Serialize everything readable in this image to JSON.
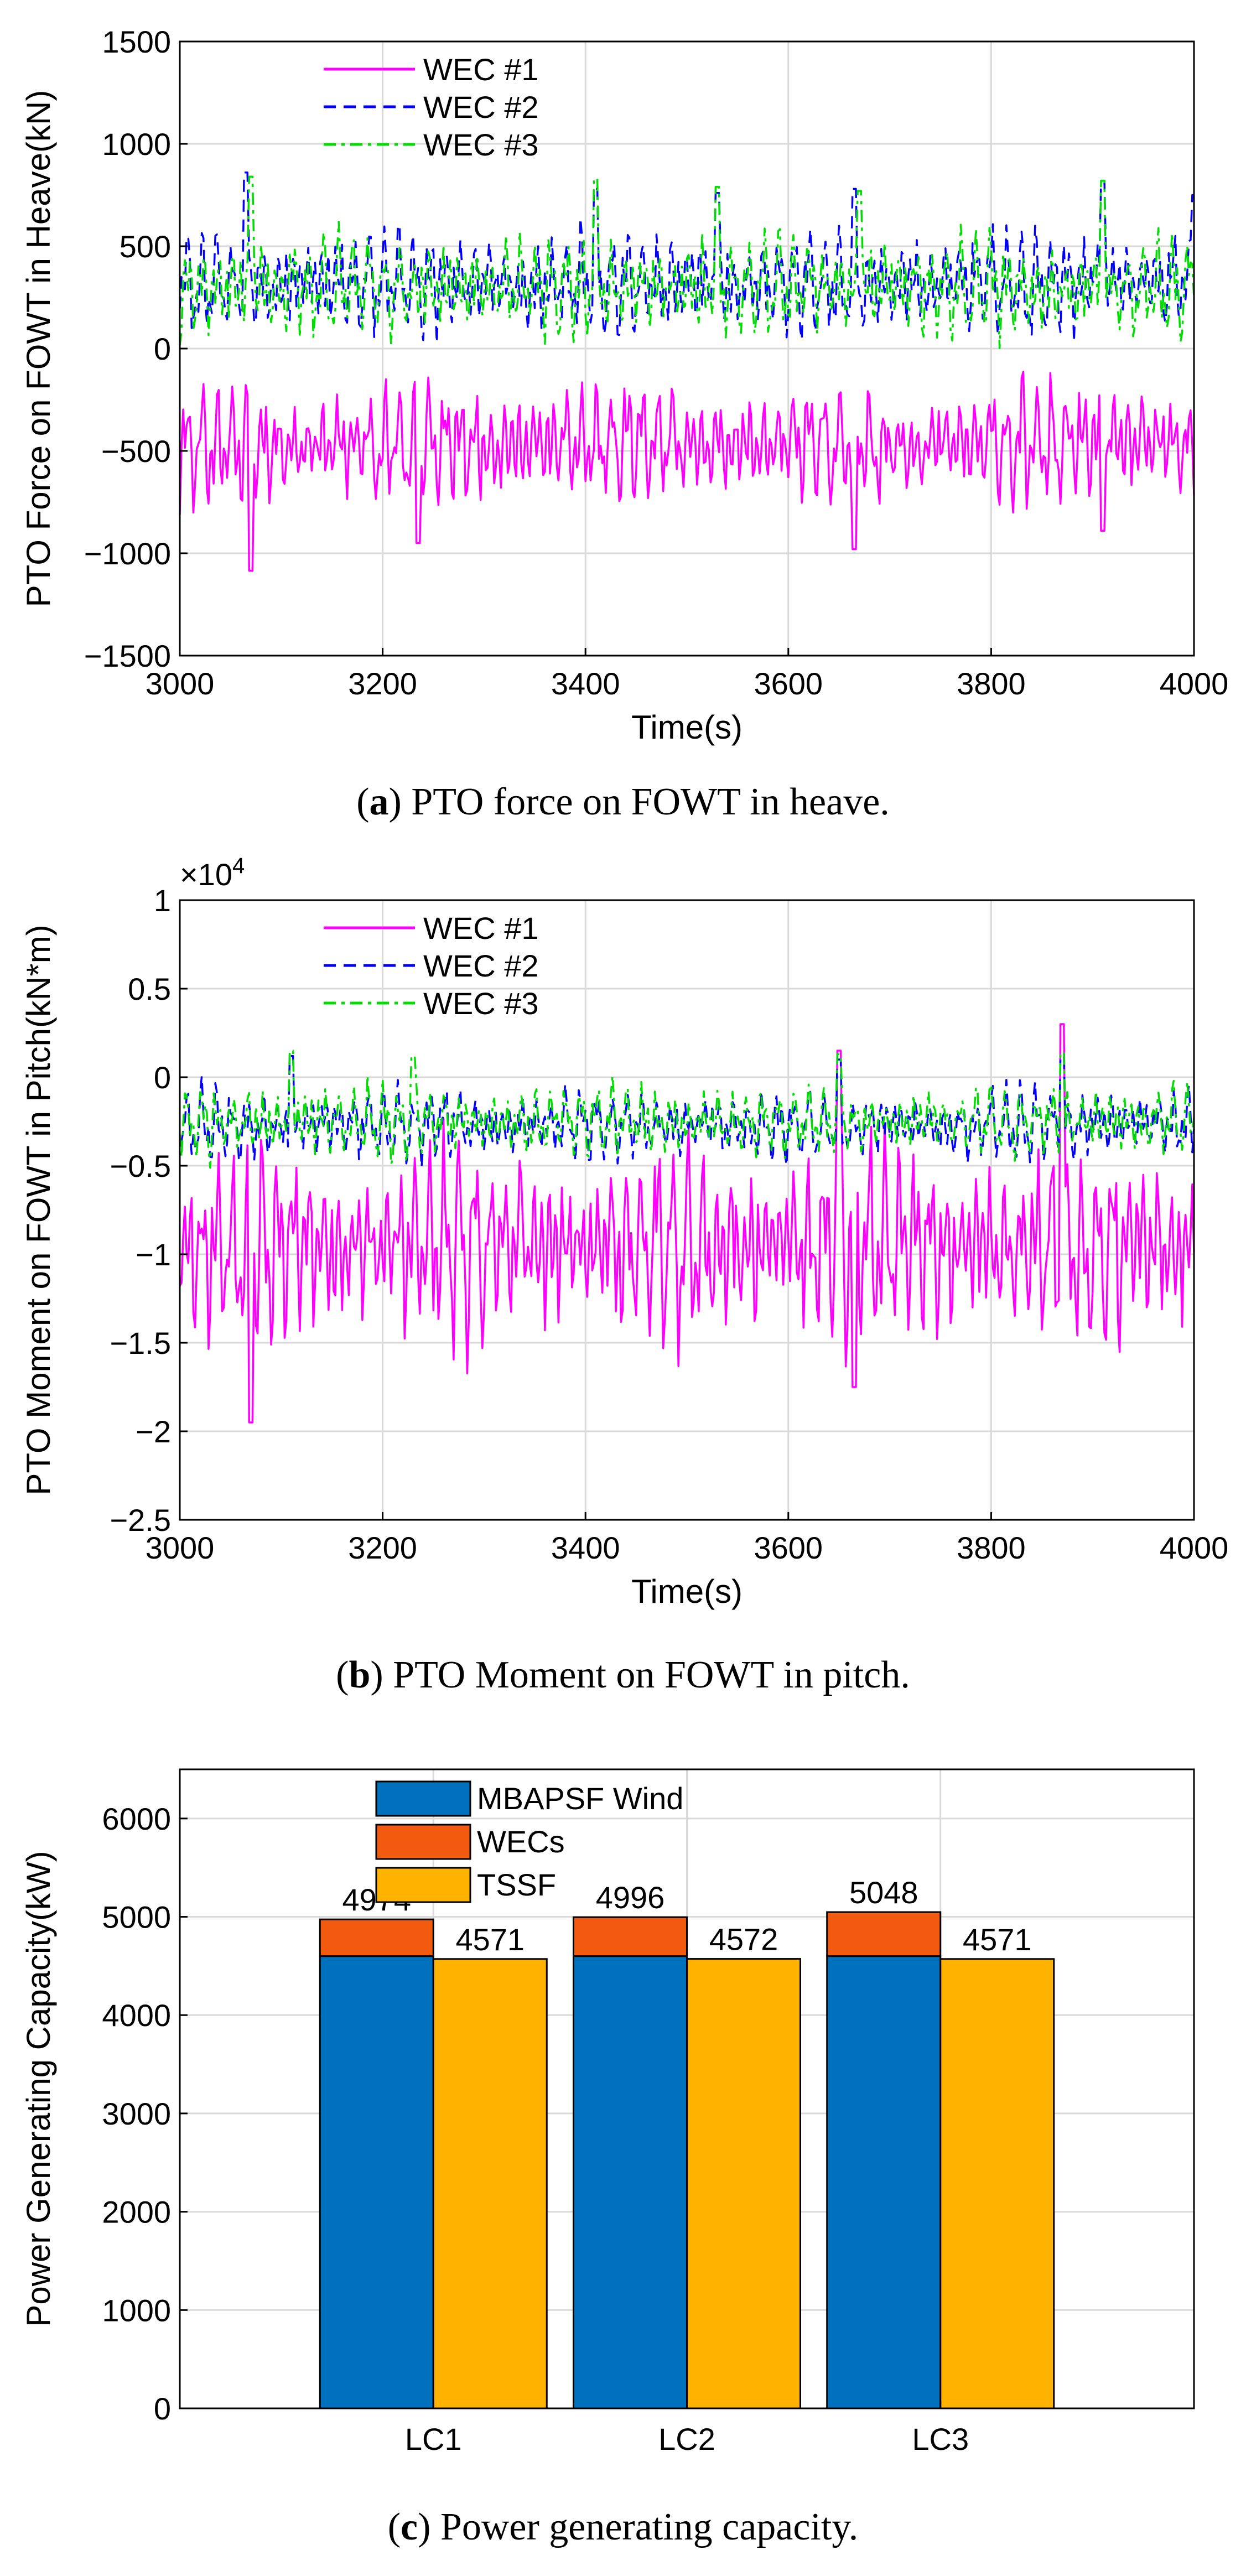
{
  "colors": {
    "wec1": "#ff00ff",
    "wec2": "#0000ff",
    "wec3": "#00dd00",
    "mbapsf": "#0072bd",
    "wecs": "#f15a0f",
    "tssf": "#ffb300",
    "grid": "#d9d9d9",
    "axis": "#000000"
  },
  "chart_data": [
    {
      "id": "a",
      "type": "line",
      "caption_label": "a",
      "caption_text": " PTO force on FOWT in heave.",
      "xlabel": "Time(s)",
      "ylabel": "PTO Force on FOWT in Heave(kN)",
      "xlim": [
        3000,
        4000
      ],
      "ylim": [
        -1500,
        1500
      ],
      "xticks": [
        3000,
        3200,
        3400,
        3600,
        3800,
        4000
      ],
      "yticks": [
        -1500,
        -1000,
        -500,
        0,
        500,
        1000,
        1500
      ],
      "ytick_labels": [
        "−1500",
        "−1000",
        "−500",
        "0",
        "500",
        "1000",
        "1500"
      ],
      "exponent_label": "",
      "grid": true,
      "legend_position": "top-left",
      "series": [
        {
          "name": "WEC #1",
          "style": "solid",
          "mean": -470,
          "amp": 160,
          "min": -1085,
          "max": -30,
          "spikes": [
            [
              3070,
              -1085
            ],
            [
              3235,
              -950
            ],
            [
              3665,
              -980
            ],
            [
              3910,
              -890
            ]
          ],
          "seed": 11
        },
        {
          "name": "WEC #2",
          "style": "dashed",
          "mean": 320,
          "amp": 140,
          "min": -100,
          "max": 860,
          "spikes": [
            [
              3065,
              860
            ],
            [
              3410,
              780
            ],
            [
              3530,
              760
            ],
            [
              3665,
              780
            ],
            [
              3910,
              820
            ],
            [
              4000,
              750
            ]
          ],
          "seed": 23
        },
        {
          "name": "WEC #3",
          "style": "dashdot",
          "mean": 300,
          "amp": 135,
          "min": -120,
          "max": 840,
          "spikes": [
            [
              3070,
              840
            ],
            [
              3410,
              830
            ],
            [
              3530,
              790
            ],
            [
              3670,
              770
            ],
            [
              3910,
              820
            ]
          ],
          "seed": 37
        }
      ]
    },
    {
      "id": "b",
      "type": "line",
      "caption_label": "b",
      "caption_text": " PTO Moment on FOWT in pitch.",
      "xlabel": "Time(s)",
      "ylabel": "PTO Moment on FOWT in Pitch(kN*m)",
      "xlim": [
        3000,
        4000
      ],
      "ylim": [
        -2.5,
        1
      ],
      "xticks": [
        3000,
        3200,
        3400,
        3600,
        3800,
        4000
      ],
      "yticks": [
        -2.5,
        -2,
        -1.5,
        -1,
        -0.5,
        0,
        0.5,
        1
      ],
      "ytick_labels": [
        "−2.5",
        "−2",
        "−1.5",
        "−1",
        "−0.5",
        "0",
        "0.5",
        "1"
      ],
      "exponent_label": "×10",
      "exponent_power": "4",
      "grid": true,
      "legend_position": "top-left",
      "series": [
        {
          "name": "WEC #1",
          "style": "solid",
          "mean": -0.95,
          "amp": 0.3,
          "min": -1.95,
          "max": 0.3,
          "spikes": [
            [
              3070,
              -1.95
            ],
            [
              3650,
              0.15
            ],
            [
              3870,
              0.3
            ],
            [
              3665,
              -1.75
            ]
          ],
          "seed": 53
        },
        {
          "name": "WEC #2",
          "style": "dashed",
          "mean": -0.27,
          "amp": 0.11,
          "min": -0.75,
          "max": 0.15,
          "spikes": [
            [
              3110,
              0.12
            ],
            [
              3650,
              0.1
            ],
            [
              3870,
              0.12
            ]
          ],
          "seed": 67
        },
        {
          "name": "WEC #3",
          "style": "dashdot",
          "mean": -0.25,
          "amp": 0.11,
          "min": -0.7,
          "max": 0.16,
          "spikes": [
            [
              3110,
              0.15
            ],
            [
              3230,
              0.12
            ],
            [
              3650,
              0.13
            ],
            [
              3870,
              0.14
            ]
          ],
          "seed": 79
        }
      ]
    },
    {
      "id": "c",
      "type": "bar",
      "caption_label": "c",
      "caption_text": " Power generating capacity.",
      "xlabel": "",
      "ylabel": "Power Generating Capacity(kW)",
      "ylim": [
        0,
        6500
      ],
      "yticks": [
        0,
        1000,
        2000,
        3000,
        4000,
        5000,
        6000
      ],
      "grid": true,
      "legend_position": "top-left",
      "categories": [
        "LC1",
        "LC2",
        "LC3"
      ],
      "series": [
        {
          "name": "MBAPSF Wind",
          "values": [
            4600,
            4600,
            4600
          ]
        },
        {
          "name": "WECs",
          "values": [
            374,
            396,
            448
          ]
        },
        {
          "name": "TSSF",
          "values": [
            4571,
            4572,
            4571
          ]
        }
      ],
      "stack_totals": [
        "4974",
        "4996",
        "5048"
      ],
      "tssf_labels": [
        "4571",
        "4572",
        "4571"
      ]
    }
  ]
}
